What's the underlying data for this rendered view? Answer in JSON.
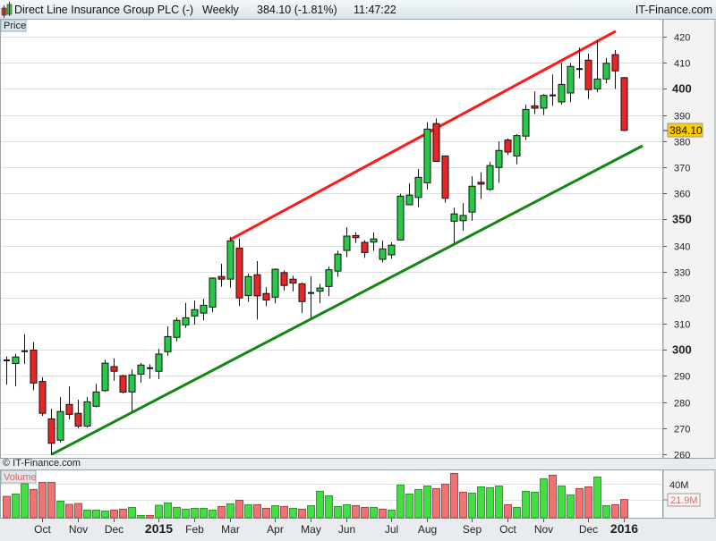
{
  "header": {
    "title": "Direct Line Insurance Group PLC (-)",
    "period": "Weekly",
    "price_change": "384.10 (-1.81%)",
    "time": "11:47:22",
    "brand": "IT-Finance.com"
  },
  "price_panel": {
    "label": "Price",
    "watermark": "© IT-Finance.com",
    "last_price_tag": "384.10"
  },
  "volume_panel": {
    "label": "Volume",
    "gridline_label": "40M",
    "last_volume_tag": "21.9M"
  },
  "colors": {
    "up": "#22cc44",
    "down": "#ee2222",
    "vol_up": "#44dd44",
    "vol_down": "#ee7474",
    "resistance": "#ff1a1a",
    "support": "#118811",
    "price_tag_bg": "#ffcc00"
  },
  "chart_data": {
    "type": "candlestick",
    "ylim": [
      258,
      424
    ],
    "y_ticks": [
      260,
      270,
      280,
      290,
      300,
      310,
      320,
      330,
      340,
      350,
      360,
      370,
      380,
      390,
      400,
      410,
      420
    ],
    "y_ticks_bold": [
      300,
      350,
      400
    ],
    "grid": true,
    "x_ticks": [
      {
        "label": "Oct",
        "index": 4
      },
      {
        "label": "Nov",
        "index": 8
      },
      {
        "label": "Dec",
        "index": 12
      },
      {
        "label": "2015",
        "index": 17,
        "bold": true
      },
      {
        "label": "Feb",
        "index": 21
      },
      {
        "label": "Mar",
        "index": 25
      },
      {
        "label": "Apr",
        "index": 30
      },
      {
        "label": "May",
        "index": 34
      },
      {
        "label": "Jun",
        "index": 38
      },
      {
        "label": "Jul",
        "index": 43
      },
      {
        "label": "Aug",
        "index": 47
      },
      {
        "label": "Sep",
        "index": 52
      },
      {
        "label": "Oct",
        "index": 56
      },
      {
        "label": "Nov",
        "index": 60
      },
      {
        "label": "Dec",
        "index": 65
      },
      {
        "label": "2016",
        "index": 69,
        "bold": true
      }
    ],
    "ohlc": [
      [
        296,
        297.5,
        286.7,
        296
      ],
      [
        294.8,
        298.5,
        286,
        297.3
      ],
      [
        299.5,
        306,
        294.6,
        299.5
      ],
      [
        299.9,
        303,
        284.5,
        287.3
      ],
      [
        287.9,
        289.5,
        274.7,
        275.7
      ],
      [
        273.6,
        277.5,
        259.7,
        264.2
      ],
      [
        265.4,
        282,
        264.5,
        276.4
      ],
      [
        279.1,
        286,
        273.4,
        275.3
      ],
      [
        275.7,
        280.9,
        270,
        270.8
      ],
      [
        270.8,
        282,
        270.2,
        280.1
      ],
      [
        278.4,
        287,
        278,
        283.9
      ],
      [
        284.4,
        296.2,
        284,
        294.9
      ],
      [
        293.6,
        296.7,
        288.2,
        291.8
      ],
      [
        290.1,
        290.5,
        283.3,
        283.8
      ],
      [
        283.9,
        292.5,
        276.5,
        290.4
      ],
      [
        290.7,
        295,
        287.5,
        294.2
      ],
      [
        293,
        294.5,
        289,
        293
      ],
      [
        291.8,
        300.4,
        288.8,
        298.4
      ],
      [
        299.3,
        309,
        297.7,
        305.1
      ],
      [
        304.8,
        312.4,
        303.3,
        311.3
      ],
      [
        309.6,
        318,
        308.4,
        312.3
      ],
      [
        313,
        319,
        309.6,
        315.4
      ],
      [
        314.1,
        319.6,
        311.3,
        317.1
      ],
      [
        316.4,
        327.8,
        314.5,
        327.5
      ],
      [
        328.1,
        333,
        324.2,
        327.1
      ],
      [
        327.1,
        343.3,
        323.8,
        341.8
      ],
      [
        339,
        342.7,
        316.8,
        319.9
      ],
      [
        320.8,
        329.2,
        318.4,
        328.1
      ],
      [
        328.8,
        334,
        311.6,
        320.7
      ],
      [
        321.6,
        324,
        316.7,
        319.1
      ],
      [
        320.2,
        331.2,
        317.8,
        330.9
      ],
      [
        329.6,
        330.5,
        322.7,
        324.7
      ],
      [
        327.1,
        328.4,
        322.4,
        325.6
      ],
      [
        325.3,
        325.8,
        314.1,
        318.5
      ],
      [
        321.8,
        328.2,
        312.2,
        321.8
      ],
      [
        322.5,
        325.3,
        317.9,
        323.7
      ],
      [
        324.3,
        331.9,
        320.6,
        330.7
      ],
      [
        330.2,
        338,
        328,
        336.7
      ],
      [
        338.1,
        347,
        335.5,
        343.6
      ],
      [
        343.8,
        345,
        341,
        343
      ],
      [
        341.2,
        342,
        335.3,
        337.3
      ],
      [
        341.3,
        345,
        337.9,
        342.5
      ],
      [
        334.7,
        341.9,
        333.5,
        338.7
      ],
      [
        336.4,
        341.2,
        335,
        340.1
      ],
      [
        342.1,
        359.8,
        341.9,
        358.9
      ],
      [
        355.6,
        363.8,
        355.5,
        359.3
      ],
      [
        358.4,
        369.3,
        354.7,
        366.1
      ],
      [
        364,
        387.2,
        361.5,
        384.6
      ],
      [
        386.7,
        388.7,
        372,
        372.2
      ],
      [
        374.3,
        374.5,
        356.4,
        358.1
      ],
      [
        349.3,
        354.5,
        341,
        352.1
      ],
      [
        349.5,
        356.2,
        345.6,
        351.5
      ],
      [
        352.8,
        366.5,
        349.5,
        362.7
      ],
      [
        364.2,
        368,
        357.8,
        363.5
      ],
      [
        361.5,
        372,
        361,
        370.6
      ],
      [
        369.9,
        379.8,
        364,
        376.4
      ],
      [
        380.4,
        381,
        374.7,
        375.8
      ],
      [
        374.3,
        382.7,
        371.2,
        382.1
      ],
      [
        381.9,
        393.9,
        380.4,
        392.1
      ],
      [
        393.5,
        399,
        390.4,
        392.6
      ],
      [
        392.6,
        398,
        390,
        397.5
      ],
      [
        397.5,
        405.5,
        393.5,
        397.5
      ],
      [
        395,
        410,
        393.9,
        401.7
      ],
      [
        398.4,
        409.8,
        394.9,
        408.6
      ],
      [
        407.6,
        415.8,
        404.1,
        407.6
      ],
      [
        411,
        413.5,
        396.1,
        399.7
      ],
      [
        400,
        418.6,
        398.7,
        403.8
      ],
      [
        403.8,
        411.8,
        402.1,
        409.8
      ],
      [
        413.1,
        414.9,
        400,
        406.9
      ],
      [
        404.3,
        404.5,
        383.8,
        384.1
      ]
    ],
    "trendlines": [
      {
        "role": "resistance",
        "from": {
          "index": 25,
          "price": 342.2
        },
        "to": {
          "index": 68.1,
          "price": 422.1
        }
      },
      {
        "role": "support",
        "from": {
          "index": 5.1,
          "price": 260
        },
        "to": {
          "index": 71.1,
          "price": 378.2
        }
      }
    ],
    "volume_millions": [
      25.7,
      28.6,
      40.7,
      33.9,
      42.5,
      42.5,
      20,
      16.1,
      17.1,
      9.3,
      9.3,
      8.2,
      9.3,
      10.4,
      12.5,
      2.9,
      2.9,
      15,
      17.9,
      12.5,
      10.4,
      11.4,
      11.4,
      9.3,
      13.6,
      16.8,
      21.1,
      15.7,
      15.7,
      11.4,
      14.6,
      13.6,
      11.4,
      10.4,
      14.6,
      31.8,
      26.4,
      13.6,
      15.7,
      14.6,
      12.5,
      12.5,
      10.4,
      9.3,
      39.3,
      28.6,
      33.9,
      38.2,
      35,
      40.4,
      53.2,
      30.7,
      29.6,
      37.1,
      36.1,
      38.2,
      15.7,
      12.5,
      31.8,
      30.7,
      46.8,
      51.1,
      38.2,
      27.5,
      35,
      37.1,
      48.9,
      14.6,
      15.7,
      21.9
    ],
    "volume_direction": [
      "d",
      "u",
      "u",
      "d",
      "d",
      "d",
      "u",
      "d",
      "d",
      "u",
      "u",
      "u",
      "d",
      "d",
      "u",
      "u",
      "d",
      "u",
      "u",
      "u",
      "u",
      "u",
      "u",
      "u",
      "d",
      "u",
      "d",
      "u",
      "d",
      "d",
      "u",
      "d",
      "u",
      "d",
      "u",
      "u",
      "u",
      "u",
      "u",
      "d",
      "d",
      "u",
      "d",
      "u",
      "u",
      "u",
      "u",
      "u",
      "d",
      "d",
      "d",
      "d",
      "u",
      "u",
      "u",
      "u",
      "d",
      "u",
      "u",
      "u",
      "u",
      "d",
      "u",
      "u",
      "d",
      "d",
      "u",
      "u",
      "d",
      "d"
    ]
  }
}
